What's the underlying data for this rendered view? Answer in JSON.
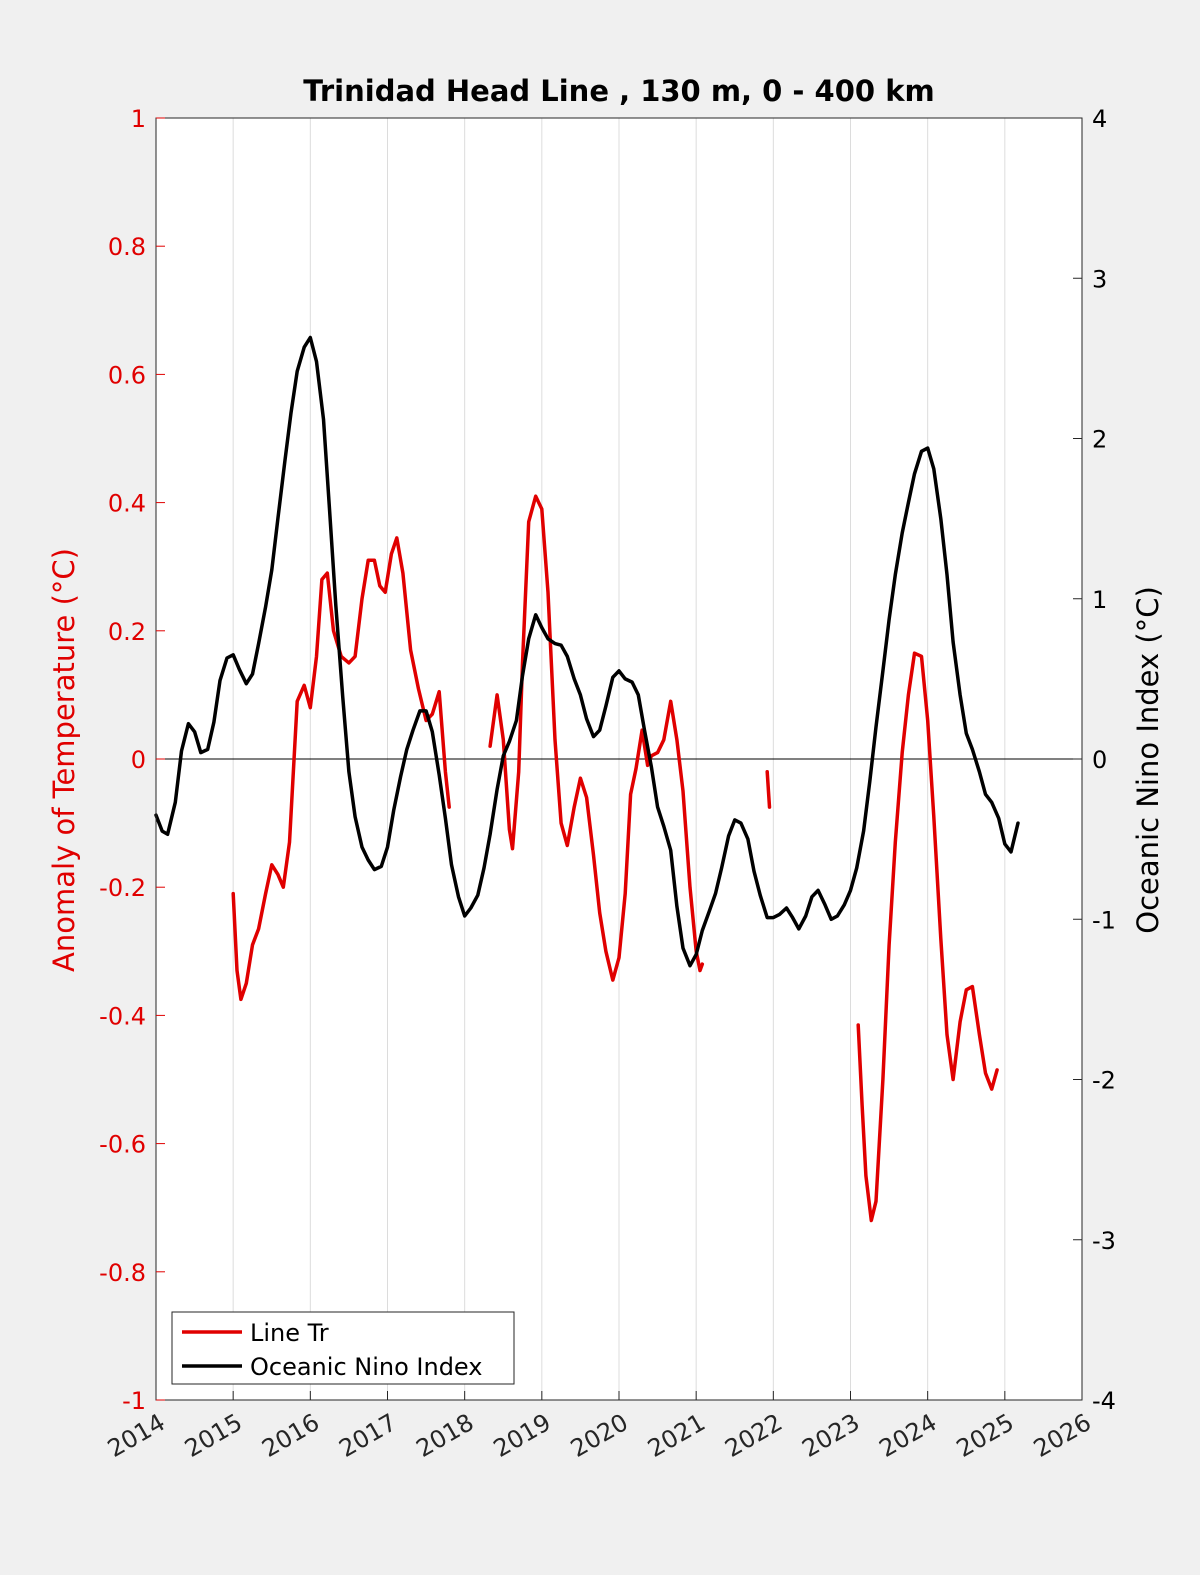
{
  "chart_data": {
    "type": "line",
    "title": "Trinidad Head Line , 130 m, 0 - 400 km",
    "xlabel": "",
    "ylabel_left": "Anomaly of Temperature (°C)",
    "ylabel_right": "Oceanic Nino Index (°C)",
    "xlim": [
      2014,
      2026
    ],
    "ylim_left": [
      -1,
      1
    ],
    "ylim_right": [
      -4,
      4
    ],
    "xticks": [
      "2014",
      "2015",
      "2016",
      "2017",
      "2018",
      "2019",
      "2020",
      "2021",
      "2022",
      "2023",
      "2024",
      "2025",
      "2026"
    ],
    "yticks_left": [
      "1",
      "0.8",
      "0.6",
      "0.4",
      "0.2",
      "0",
      "-0.2",
      "-0.4",
      "-0.6",
      "-0.8",
      "-1"
    ],
    "yticks_right": [
      "4",
      "3",
      "2",
      "1",
      "0",
      "-1",
      "-2",
      "-3",
      "-4"
    ],
    "grid": "vertical",
    "legend_placement": "bottom-left",
    "colors": {
      "line_tr": "#e00000",
      "oni": "#000000",
      "left_axis": "#e00000",
      "right_axis": "#000000"
    },
    "series": [
      {
        "name": "Line Tr",
        "axis": "left",
        "segments": [
          [
            [
              2015.0,
              -0.21
            ],
            [
              2015.05,
              -0.33
            ],
            [
              2015.1,
              -0.375
            ],
            [
              2015.17,
              -0.35
            ],
            [
              2015.25,
              -0.29
            ],
            [
              2015.33,
              -0.265
            ],
            [
              2015.42,
              -0.21
            ],
            [
              2015.5,
              -0.165
            ],
            [
              2015.58,
              -0.18
            ],
            [
              2015.65,
              -0.2
            ],
            [
              2015.73,
              -0.13
            ],
            [
              2015.83,
              0.09
            ],
            [
              2015.92,
              0.115
            ],
            [
              2016.0,
              0.08
            ],
            [
              2016.08,
              0.16
            ],
            [
              2016.15,
              0.28
            ],
            [
              2016.22,
              0.29
            ],
            [
              2016.3,
              0.2
            ],
            [
              2016.4,
              0.16
            ],
            [
              2016.5,
              0.15
            ],
            [
              2016.58,
              0.16
            ],
            [
              2016.67,
              0.25
            ],
            [
              2016.75,
              0.31
            ],
            [
              2016.83,
              0.31
            ],
            [
              2016.9,
              0.27
            ],
            [
              2016.97,
              0.26
            ],
            [
              2017.05,
              0.32
            ],
            [
              2017.12,
              0.345
            ],
            [
              2017.2,
              0.29
            ],
            [
              2017.3,
              0.17
            ],
            [
              2017.4,
              0.11
            ],
            [
              2017.5,
              0.06
            ],
            [
              2017.58,
              0.07
            ],
            [
              2017.67,
              0.105
            ],
            [
              2017.75,
              -0.02
            ],
            [
              2017.8,
              -0.075
            ]
          ],
          [
            [
              2018.33,
              0.02
            ],
            [
              2018.42,
              0.1
            ],
            [
              2018.5,
              0.03
            ],
            [
              2018.58,
              -0.11
            ],
            [
              2018.62,
              -0.14
            ],
            [
              2018.7,
              -0.02
            ],
            [
              2018.75,
              0.15
            ],
            [
              2018.83,
              0.37
            ],
            [
              2018.92,
              0.41
            ],
            [
              2019.0,
              0.39
            ],
            [
              2019.08,
              0.26
            ],
            [
              2019.17,
              0.03
            ],
            [
              2019.25,
              -0.1
            ],
            [
              2019.33,
              -0.135
            ],
            [
              2019.42,
              -0.075
            ],
            [
              2019.5,
              -0.03
            ],
            [
              2019.58,
              -0.06
            ],
            [
              2019.67,
              -0.15
            ],
            [
              2019.75,
              -0.24
            ],
            [
              2019.83,
              -0.3
            ],
            [
              2019.92,
              -0.345
            ],
            [
              2020.0,
              -0.31
            ],
            [
              2020.08,
              -0.21
            ],
            [
              2020.15,
              -0.055
            ],
            [
              2020.22,
              -0.015
            ],
            [
              2020.3,
              0.045
            ],
            [
              2020.37,
              -0.01
            ],
            [
              2020.42,
              0.005
            ],
            [
              2020.5,
              0.01
            ],
            [
              2020.58,
              0.03
            ],
            [
              2020.67,
              0.09
            ],
            [
              2020.75,
              0.03
            ],
            [
              2020.83,
              -0.05
            ],
            [
              2020.92,
              -0.2
            ],
            [
              2021.0,
              -0.3
            ],
            [
              2021.05,
              -0.33
            ],
            [
              2021.08,
              -0.32
            ]
          ],
          [
            [
              2021.92,
              -0.02
            ],
            [
              2021.95,
              -0.075
            ]
          ],
          [
            [
              2023.1,
              -0.415
            ],
            [
              2023.15,
              -0.54
            ],
            [
              2023.2,
              -0.65
            ],
            [
              2023.27,
              -0.72
            ],
            [
              2023.33,
              -0.69
            ],
            [
              2023.42,
              -0.5
            ],
            [
              2023.5,
              -0.29
            ],
            [
              2023.58,
              -0.13
            ],
            [
              2023.67,
              0.01
            ],
            [
              2023.75,
              0.1
            ],
            [
              2023.83,
              0.165
            ],
            [
              2023.92,
              0.16
            ],
            [
              2024.0,
              0.06
            ],
            [
              2024.08,
              -0.09
            ],
            [
              2024.17,
              -0.28
            ],
            [
              2024.25,
              -0.43
            ],
            [
              2024.33,
              -0.5
            ],
            [
              2024.42,
              -0.41
            ],
            [
              2024.5,
              -0.36
            ],
            [
              2024.58,
              -0.355
            ],
            [
              2024.67,
              -0.43
            ],
            [
              2024.75,
              -0.49
            ],
            [
              2024.83,
              -0.515
            ],
            [
              2024.9,
              -0.485
            ]
          ]
        ]
      },
      {
        "name": "Oceanic Nino Index",
        "axis": "right",
        "points": [
          [
            2014.0,
            -0.35
          ],
          [
            2014.08,
            -0.45
          ],
          [
            2014.15,
            -0.47
          ],
          [
            2014.25,
            -0.27
          ],
          [
            2014.33,
            0.05
          ],
          [
            2014.42,
            0.22
          ],
          [
            2014.5,
            0.17
          ],
          [
            2014.58,
            0.04
          ],
          [
            2014.67,
            0.06
          ],
          [
            2014.75,
            0.23
          ],
          [
            2014.83,
            0.49
          ],
          [
            2014.92,
            0.63
          ],
          [
            2015.0,
            0.65
          ],
          [
            2015.08,
            0.56
          ],
          [
            2015.17,
            0.47
          ],
          [
            2015.25,
            0.53
          ],
          [
            2015.33,
            0.72
          ],
          [
            2015.42,
            0.95
          ],
          [
            2015.5,
            1.18
          ],
          [
            2015.58,
            1.5
          ],
          [
            2015.67,
            1.86
          ],
          [
            2015.75,
            2.16
          ],
          [
            2015.83,
            2.42
          ],
          [
            2015.92,
            2.57
          ],
          [
            2016.0,
            2.63
          ],
          [
            2016.08,
            2.48
          ],
          [
            2016.17,
            2.12
          ],
          [
            2016.25,
            1.55
          ],
          [
            2016.33,
            0.96
          ],
          [
            2016.42,
            0.39
          ],
          [
            2016.5,
            -0.08
          ],
          [
            2016.58,
            -0.36
          ],
          [
            2016.67,
            -0.55
          ],
          [
            2016.75,
            -0.63
          ],
          [
            2016.83,
            -0.69
          ],
          [
            2016.92,
            -0.67
          ],
          [
            2017.0,
            -0.55
          ],
          [
            2017.08,
            -0.32
          ],
          [
            2017.17,
            -0.11
          ],
          [
            2017.25,
            0.06
          ],
          [
            2017.33,
            0.18
          ],
          [
            2017.42,
            0.3
          ],
          [
            2017.5,
            0.3
          ],
          [
            2017.58,
            0.17
          ],
          [
            2017.67,
            -0.1
          ],
          [
            2017.75,
            -0.37
          ],
          [
            2017.83,
            -0.66
          ],
          [
            2017.92,
            -0.86
          ],
          [
            2018.0,
            -0.98
          ],
          [
            2018.08,
            -0.93
          ],
          [
            2018.17,
            -0.85
          ],
          [
            2018.25,
            -0.68
          ],
          [
            2018.33,
            -0.47
          ],
          [
            2018.42,
            -0.19
          ],
          [
            2018.5,
            0.02
          ],
          [
            2018.58,
            0.11
          ],
          [
            2018.67,
            0.24
          ],
          [
            2018.75,
            0.52
          ],
          [
            2018.83,
            0.75
          ],
          [
            2018.92,
            0.9
          ],
          [
            2019.0,
            0.82
          ],
          [
            2019.08,
            0.75
          ],
          [
            2019.17,
            0.72
          ],
          [
            2019.25,
            0.71
          ],
          [
            2019.33,
            0.64
          ],
          [
            2019.42,
            0.5
          ],
          [
            2019.5,
            0.4
          ],
          [
            2019.58,
            0.25
          ],
          [
            2019.67,
            0.14
          ],
          [
            2019.75,
            0.18
          ],
          [
            2019.83,
            0.33
          ],
          [
            2019.92,
            0.51
          ],
          [
            2020.0,
            0.55
          ],
          [
            2020.08,
            0.5
          ],
          [
            2020.17,
            0.48
          ],
          [
            2020.25,
            0.4
          ],
          [
            2020.33,
            0.18
          ],
          [
            2020.42,
            -0.05
          ],
          [
            2020.5,
            -0.3
          ],
          [
            2020.58,
            -0.42
          ],
          [
            2020.67,
            -0.57
          ],
          [
            2020.75,
            -0.92
          ],
          [
            2020.83,
            -1.18
          ],
          [
            2020.92,
            -1.29
          ],
          [
            2021.0,
            -1.22
          ],
          [
            2021.08,
            -1.07
          ],
          [
            2021.17,
            -0.95
          ],
          [
            2021.25,
            -0.84
          ],
          [
            2021.33,
            -0.68
          ],
          [
            2021.42,
            -0.48
          ],
          [
            2021.5,
            -0.38
          ],
          [
            2021.58,
            -0.4
          ],
          [
            2021.67,
            -0.5
          ],
          [
            2021.75,
            -0.7
          ],
          [
            2021.83,
            -0.85
          ],
          [
            2021.92,
            -0.99
          ],
          [
            2022.0,
            -0.99
          ],
          [
            2022.08,
            -0.97
          ],
          [
            2022.17,
            -0.93
          ],
          [
            2022.25,
            -0.99
          ],
          [
            2022.33,
            -1.06
          ],
          [
            2022.42,
            -0.98
          ],
          [
            2022.5,
            -0.86
          ],
          [
            2022.58,
            -0.82
          ],
          [
            2022.67,
            -0.91
          ],
          [
            2022.75,
            -1.0
          ],
          [
            2022.83,
            -0.98
          ],
          [
            2022.92,
            -0.91
          ],
          [
            2023.0,
            -0.82
          ],
          [
            2023.08,
            -0.68
          ],
          [
            2023.17,
            -0.45
          ],
          [
            2023.25,
            -0.14
          ],
          [
            2023.33,
            0.2
          ],
          [
            2023.42,
            0.55
          ],
          [
            2023.5,
            0.87
          ],
          [
            2023.58,
            1.15
          ],
          [
            2023.67,
            1.41
          ],
          [
            2023.75,
            1.6
          ],
          [
            2023.83,
            1.78
          ],
          [
            2023.92,
            1.92
          ],
          [
            2024.0,
            1.94
          ],
          [
            2024.08,
            1.81
          ],
          [
            2024.17,
            1.5
          ],
          [
            2024.25,
            1.15
          ],
          [
            2024.33,
            0.73
          ],
          [
            2024.42,
            0.4
          ],
          [
            2024.5,
            0.16
          ],
          [
            2024.58,
            0.06
          ],
          [
            2024.67,
            -0.08
          ],
          [
            2024.75,
            -0.22
          ],
          [
            2024.83,
            -0.27
          ],
          [
            2024.92,
            -0.37
          ],
          [
            2025.0,
            -0.53
          ],
          [
            2025.08,
            -0.58
          ],
          [
            2025.17,
            -0.4
          ]
        ]
      }
    ]
  }
}
